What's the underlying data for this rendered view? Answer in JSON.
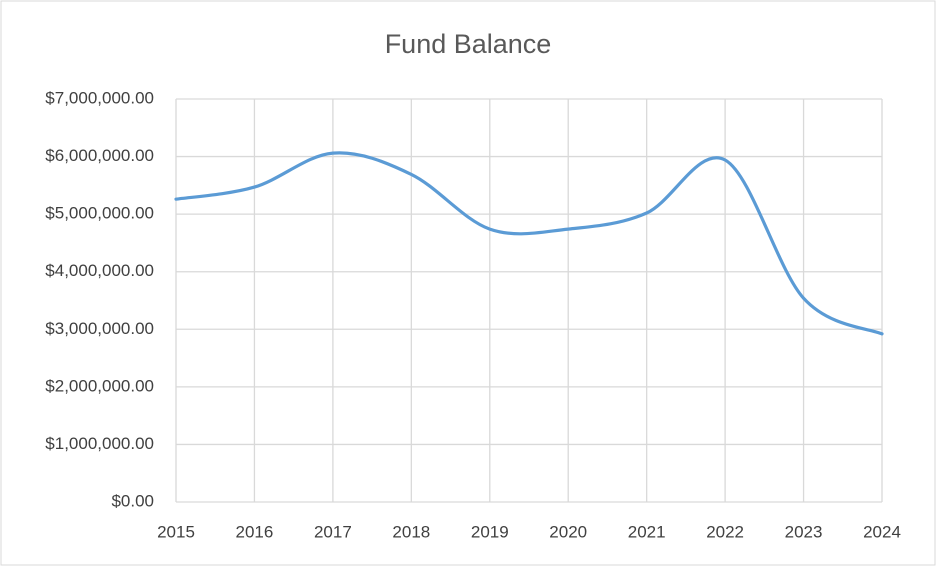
{
  "chart_data": {
    "type": "line",
    "title": "Fund Balance",
    "x": [
      2015,
      2016,
      2017,
      2018,
      2019,
      2020,
      2021,
      2022,
      2023,
      2024
    ],
    "values": [
      5260000,
      5470000,
      6060000,
      5690000,
      4740000,
      4740000,
      5020000,
      5940000,
      3540000,
      2920000
    ],
    "color": "#5b9bd5",
    "smooth": true,
    "grid": true,
    "xlim": [
      2015,
      2024
    ],
    "xticks": [
      2015,
      2016,
      2017,
      2018,
      2019,
      2020,
      2021,
      2022,
      2023,
      2024
    ],
    "ylim": [
      0,
      7000000
    ],
    "yticks": [
      {
        "value": 0,
        "label": "$0.00"
      },
      {
        "value": 1000000,
        "label": "$1,000,000.00"
      },
      {
        "value": 2000000,
        "label": "$2,000,000.00"
      },
      {
        "value": 3000000,
        "label": "$3,000,000.00"
      },
      {
        "value": 4000000,
        "label": "$4,000,000.00"
      },
      {
        "value": 5000000,
        "label": "$5,000,000.00"
      },
      {
        "value": 6000000,
        "label": "$6,000,000.00"
      },
      {
        "value": 7000000,
        "label": "$7,000,000.00"
      }
    ]
  }
}
